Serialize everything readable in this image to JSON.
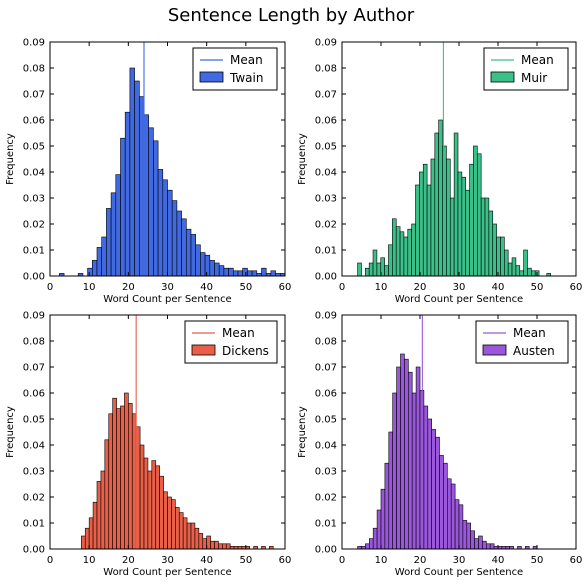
{
  "figure": {
    "title": "Sentence Length by Author"
  },
  "chart_data": [
    {
      "type": "bar",
      "author": "Twain",
      "color": "#4169e1",
      "legend": [
        "Mean",
        "Twain"
      ],
      "xlabel": "Word Count per Sentence",
      "ylabel": "Frequency",
      "xlim": [
        0,
        60
      ],
      "ylim": [
        0,
        0.09
      ],
      "xticks": [
        "0",
        "10",
        "20",
        "30",
        "40",
        "50",
        "60"
      ],
      "yticks": [
        "0.00",
        "0.01",
        "0.02",
        "0.03",
        "0.04",
        "0.05",
        "0.06",
        "0.07",
        "0.08",
        "0.09"
      ],
      "mean": 24.0,
      "bin_start": 0,
      "bin_width": 1.2,
      "values": [
        0.0,
        0.0,
        0.001,
        0.0,
        0.0,
        0.0,
        0.001,
        0.0,
        0.003,
        0.006,
        0.011,
        0.015,
        0.026,
        0.032,
        0.039,
        0.053,
        0.063,
        0.08,
        0.075,
        0.069,
        0.062,
        0.057,
        0.052,
        0.041,
        0.037,
        0.033,
        0.029,
        0.025,
        0.022,
        0.018,
        0.016,
        0.012,
        0.009,
        0.008,
        0.006,
        0.005,
        0.004,
        0.003,
        0.003,
        0.002,
        0.002,
        0.003,
        0.002,
        0.002,
        0.001,
        0.003,
        0.001,
        0.002,
        0.001,
        0.001
      ]
    },
    {
      "type": "bar",
      "author": "Muir",
      "color": "#3cc08a",
      "legend": [
        "Mean",
        "Muir"
      ],
      "xlabel": "Word Count per Sentence",
      "ylabel": "Frequency",
      "xlim": [
        0,
        60
      ],
      "ylim": [
        0,
        0.09
      ],
      "xticks": [
        "0",
        "10",
        "20",
        "30",
        "40",
        "50",
        "60"
      ],
      "yticks": [
        "0.00",
        "0.01",
        "0.02",
        "0.03",
        "0.04",
        "0.05",
        "0.06",
        "0.07",
        "0.08",
        "0.09"
      ],
      "mean": 26.0,
      "bin_start": 4,
      "bin_width": 0.99,
      "values": [
        0.005,
        0.0,
        0.003,
        0.005,
        0.01,
        0.005,
        0.007,
        0.004,
        0.012,
        0.022,
        0.019,
        0.017,
        0.015,
        0.018,
        0.02,
        0.035,
        0.04,
        0.043,
        0.035,
        0.045,
        0.055,
        0.06,
        0.05,
        0.045,
        0.03,
        0.055,
        0.04,
        0.038,
        0.033,
        0.043,
        0.05,
        0.047,
        0.03,
        0.03,
        0.025,
        0.02,
        0.015,
        0.015,
        0.01,
        0.005,
        0.007,
        0.004,
        0.002,
        0.01,
        0.003,
        0.002,
        0.002,
        0.0,
        0.0,
        0.001
      ]
    },
    {
      "type": "bar",
      "author": "Dickens",
      "color": "#e95f47",
      "legend": [
        "Mean",
        "Dickens"
      ],
      "xlabel": "Word Count per Sentence",
      "ylabel": "Frequency",
      "xlim": [
        0,
        60
      ],
      "ylim": [
        0,
        0.09
      ],
      "xticks": [
        "0",
        "10",
        "20",
        "30",
        "40",
        "50",
        "60"
      ],
      "yticks": [
        "0.00",
        "0.01",
        "0.02",
        "0.03",
        "0.04",
        "0.05",
        "0.06",
        "0.07",
        "0.08",
        "0.09"
      ],
      "mean": 22.0,
      "bin_start": 8,
      "bin_width": 1.0,
      "values": [
        0.005,
        0.008,
        0.012,
        0.018,
        0.026,
        0.03,
        0.042,
        0.052,
        0.058,
        0.054,
        0.055,
        0.06,
        0.056,
        0.052,
        0.047,
        0.04,
        0.035,
        0.03,
        0.034,
        0.032,
        0.028,
        0.022,
        0.02,
        0.019,
        0.016,
        0.014,
        0.012,
        0.01,
        0.01,
        0.008,
        0.006,
        0.004,
        0.005,
        0.003,
        0.003,
        0.002,
        0.002,
        0.002,
        0.001,
        0.001,
        0.001,
        0.001,
        0.001,
        0.0,
        0.001,
        0.0,
        0.001,
        0.0,
        0.001,
        0.0
      ]
    },
    {
      "type": "bar",
      "author": "Austen",
      "color": "#9b57dc",
      "legend": [
        "Mean",
        "Austen"
      ],
      "xlabel": "Word Count per Sentence",
      "ylabel": "Frequency",
      "xlim": [
        0,
        60
      ],
      "ylim": [
        0,
        0.09
      ],
      "xticks": [
        "0",
        "10",
        "20",
        "30",
        "40",
        "50",
        "60"
      ],
      "yticks": [
        "0.00",
        "0.01",
        "0.02",
        "0.03",
        "0.04",
        "0.05",
        "0.06",
        "0.07",
        "0.08",
        "0.09"
      ],
      "mean": 20.6,
      "bin_start": 4,
      "bin_width": 1.0,
      "values": [
        0.001,
        0.001,
        0.002,
        0.004,
        0.008,
        0.015,
        0.023,
        0.033,
        0.045,
        0.06,
        0.07,
        0.075,
        0.073,
        0.068,
        0.06,
        0.07,
        0.061,
        0.055,
        0.05,
        0.046,
        0.043,
        0.036,
        0.033,
        0.027,
        0.025,
        0.019,
        0.017,
        0.011,
        0.01,
        0.007,
        0.004,
        0.005,
        0.003,
        0.002,
        0.002,
        0.001,
        0.001,
        0.001,
        0.001,
        0.001,
        0.0,
        0.001,
        0.0,
        0.001,
        0.0,
        0.001,
        0.0,
        0.0,
        0.0,
        0.0
      ]
    }
  ]
}
